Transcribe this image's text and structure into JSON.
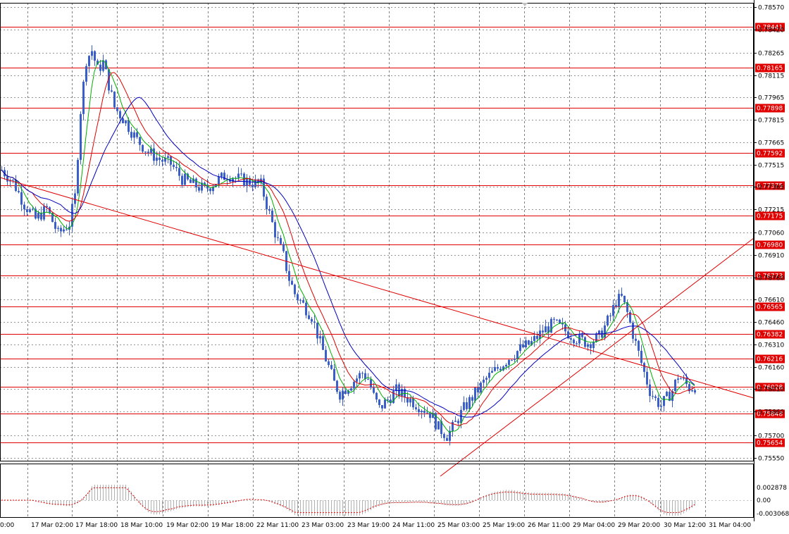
{
  "chart_data": {
    "type": "candlestick",
    "instrument_timeframe": "",
    "y_ticks": [
      "0.78570",
      "0.78420",
      "0.78265",
      "0.78115",
      "0.77965",
      "0.77815",
      "0.77665",
      "0.77515",
      "0.77365",
      "0.77215",
      "0.77060",
      "0.76910",
      "0.76760",
      "0.76610",
      "0.76460",
      "0.76310",
      "0.76160",
      "0.76010",
      "0.75860",
      "0.75700",
      "0.75550"
    ],
    "ylim": [
      0.7553,
      0.786
    ],
    "x_ticks": [
      "0:00",
      "17 Mar 02:00",
      "17 Mar 18:00",
      "18 Mar 10:00",
      "19 Mar 02:00",
      "19 Mar 18:00",
      "22 Mar 11:00",
      "23 Mar 03:00",
      "23 Mar 19:00",
      "24 Mar 11:00",
      "25 Mar 03:00",
      "25 Mar 19:00",
      "26 Mar 11:00",
      "29 Mar 04:00",
      "29 Mar 20:00",
      "30 Mar 12:00",
      "31 Mar 04:00"
    ],
    "levels": [
      "0.78441",
      "0.78165",
      "0.77898",
      "0.77592",
      "0.77375",
      "0.77175",
      "0.76980",
      "0.76773",
      "0.76565",
      "0.76382",
      "0.76216",
      "0.76028",
      "0.75848",
      "0.75654"
    ],
    "close_points": [
      [
        0,
        0.7748
      ],
      [
        4,
        0.774
      ],
      [
        8,
        0.7725
      ],
      [
        12,
        0.7715
      ],
      [
        16,
        0.7722
      ],
      [
        20,
        0.7705
      ],
      [
        24,
        0.7712
      ],
      [
        26,
        0.773
      ],
      [
        28,
        0.7788
      ],
      [
        30,
        0.7822
      ],
      [
        32,
        0.7828
      ],
      [
        34,
        0.7815
      ],
      [
        36,
        0.782
      ],
      [
        38,
        0.7805
      ],
      [
        40,
        0.779
      ],
      [
        44,
        0.778
      ],
      [
        48,
        0.7768
      ],
      [
        52,
        0.776
      ],
      [
        56,
        0.7755
      ],
      [
        60,
        0.7752
      ],
      [
        64,
        0.7742
      ],
      [
        68,
        0.7738
      ],
      [
        72,
        0.7735
      ],
      [
        76,
        0.774
      ],
      [
        80,
        0.7745
      ],
      [
        84,
        0.7742
      ],
      [
        88,
        0.774
      ],
      [
        92,
        0.7738
      ],
      [
        94,
        0.7725
      ],
      [
        96,
        0.7712
      ],
      [
        98,
        0.77
      ],
      [
        100,
        0.769
      ],
      [
        102,
        0.7675
      ],
      [
        104,
        0.7665
      ],
      [
        106,
        0.766
      ],
      [
        110,
        0.765
      ],
      [
        113,
        0.7632
      ],
      [
        116,
        0.7616
      ],
      [
        118,
        0.7605
      ],
      [
        120,
        0.7598
      ],
      [
        124,
        0.7605
      ],
      [
        128,
        0.7612
      ],
      [
        130,
        0.7608
      ],
      [
        132,
        0.7596
      ],
      [
        134,
        0.7588
      ],
      [
        136,
        0.7592
      ],
      [
        140,
        0.76
      ],
      [
        144,
        0.7595
      ],
      [
        148,
        0.759
      ],
      [
        152,
        0.7585
      ],
      [
        155,
        0.7575
      ],
      [
        158,
        0.757
      ],
      [
        160,
        0.7575
      ],
      [
        164,
        0.7588
      ],
      [
        168,
        0.7598
      ],
      [
        172,
        0.7608
      ],
      [
        176,
        0.7615
      ],
      [
        180,
        0.7622
      ],
      [
        184,
        0.7628
      ],
      [
        188,
        0.7632
      ],
      [
        192,
        0.764
      ],
      [
        196,
        0.7645
      ],
      [
        200,
        0.764
      ],
      [
        204,
        0.7635
      ],
      [
        208,
        0.7632
      ],
      [
        212,
        0.7636
      ],
      [
        216,
        0.765
      ],
      [
        218,
        0.766
      ],
      [
        220,
        0.7662
      ],
      [
        222,
        0.7652
      ],
      [
        224,
        0.7638
      ],
      [
        226,
        0.7625
      ],
      [
        228,
        0.7612
      ],
      [
        230,
        0.76
      ],
      [
        232,
        0.7594
      ],
      [
        234,
        0.759
      ],
      [
        236,
        0.7595
      ],
      [
        238,
        0.76
      ],
      [
        240,
        0.761
      ],
      [
        242,
        0.7606
      ],
      [
        244,
        0.7602
      ],
      [
        246,
        0.7603
      ]
    ],
    "lower_indicator_ticks": [
      "0.002878",
      "0.00",
      "-0.003068"
    ]
  }
}
